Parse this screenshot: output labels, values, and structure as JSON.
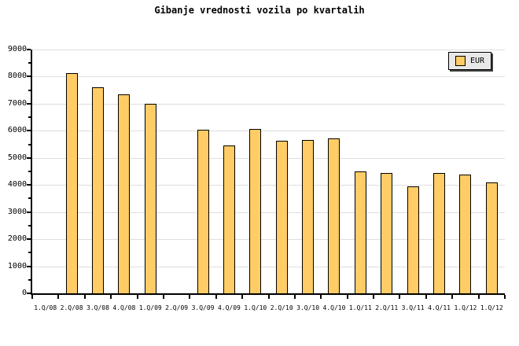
{
  "chart_data": {
    "type": "bar",
    "title": "Gibanje vrednosti vozila po kvartalih",
    "categories": [
      "1.Q/08",
      "2.Q/08",
      "3.Q/08",
      "4.Q/08",
      "1.Q/09",
      "2.Q/09",
      "3.Q/09",
      "4.Q/09",
      "1.Q/10",
      "2.Q/10",
      "3.Q/10",
      "4.Q/10",
      "1.Q/11",
      "2.Q/11",
      "3.Q/11",
      "4.Q/11",
      "1.Q/12",
      "1.Q/12"
    ],
    "series": [
      {
        "name": "EUR",
        "values": [
          null,
          8130,
          7600,
          7340,
          7000,
          null,
          6030,
          5450,
          6080,
          5640,
          5650,
          5720,
          4500,
          4450,
          3950,
          4450,
          4380,
          4100
        ]
      }
    ],
    "xlabel": "",
    "ylabel": "",
    "ylim": [
      0,
      9000
    ],
    "ytick_interval": 1000,
    "ytick_minor_interval": 500,
    "yticks": [
      0,
      1000,
      2000,
      3000,
      4000,
      5000,
      6000,
      7000,
      8000,
      9000
    ],
    "grid": "horizontal",
    "legend": [
      "EUR"
    ],
    "legend_position": "top-right"
  },
  "colors": {
    "background": "#FFFFFF",
    "text": "#000000",
    "axis": "#000000",
    "gridline": "#DEDEDE",
    "bar_fill": "#FFCC66",
    "bar_border": "#000000",
    "legend_bg": "#E8E8E8",
    "legend_shadow": "#404040"
  }
}
